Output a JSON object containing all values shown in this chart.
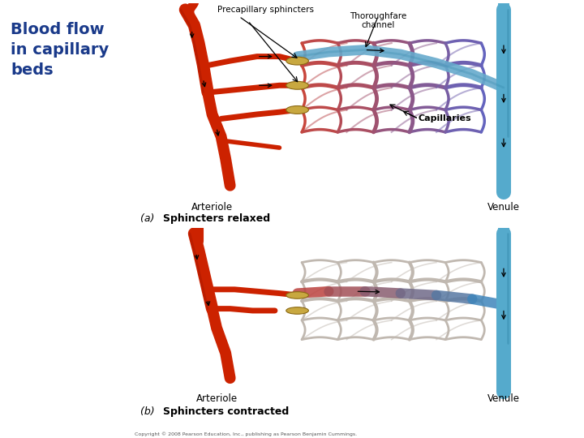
{
  "title": "Blood flow\nin capillary\nbeds",
  "title_color": "#1a3a8a",
  "title_fontsize": 14,
  "panel_bg": "#f0ddb8",
  "white_bg": "#ffffff",
  "panel_a_label_prefix": "(a) ",
  "panel_a_label_bold": "Sphincters relaxed",
  "panel_b_label_prefix": "(b) ",
  "panel_b_label_bold": "Sphincters contracted",
  "label_arteriole": "Arteriole",
  "label_venule": "Venule",
  "label_capillaries": "Capillaries",
  "label_precap": "Precapillary sphincters",
  "label_thoroughfare": "Thoroughfare\nchannel",
  "arteriole_color": "#cc2200",
  "arteriole_dark": "#aa1800",
  "venule_color": "#55aacc",
  "venule_dark": "#3388aa",
  "cap_red": "#cc5540",
  "cap_blue": "#88bbcc",
  "cap_purple": "#9988bb",
  "cap_gray": "#c0b8b0",
  "thoroughfare_color": "#66aacc",
  "sphincter_color": "#c8a840",
  "sphincter_edge": "#8b6914",
  "copyright": "Copyright © 2008 Pearson Education, Inc., publishing as Pearson Benjamin Cummings."
}
